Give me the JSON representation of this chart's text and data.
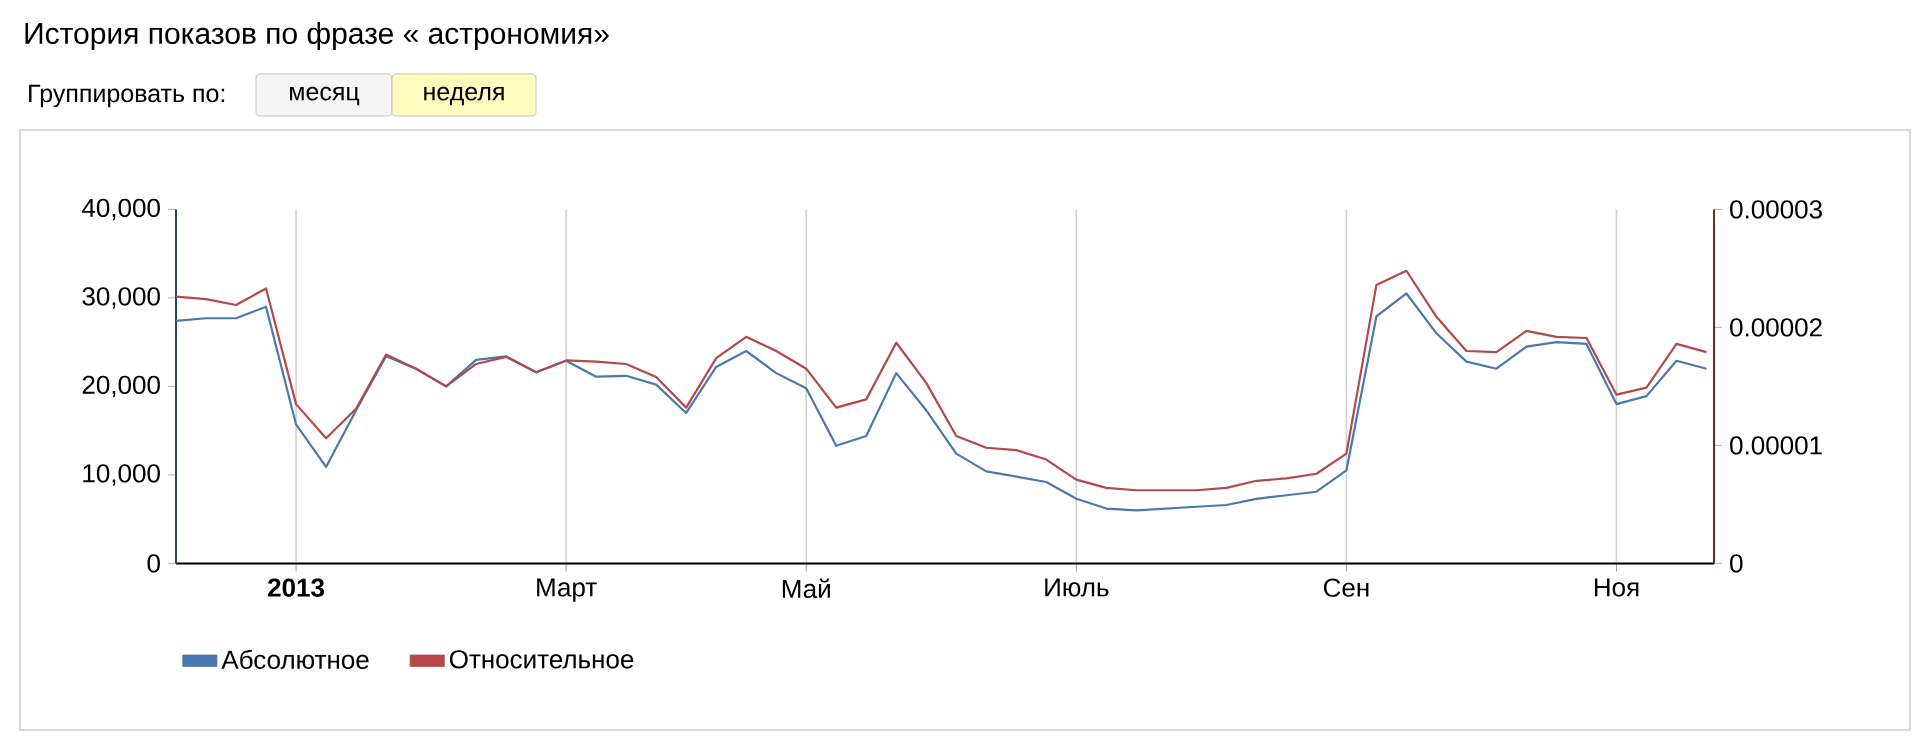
{
  "chart_data": {
    "type": "line",
    "title": "История показов по фразе « астрономия»",
    "annotations": [
      "Группировать по:",
      "месяц",
      "неделя"
    ],
    "categories": [
      null,
      null,
      null,
      null,
      "2013",
      null,
      null,
      null,
      null,
      null,
      null,
      null,
      null,
      "Март",
      null,
      null,
      null,
      null,
      null,
      null,
      null,
      "Май",
      null,
      null,
      null,
      null,
      null,
      null,
      null,
      null,
      "Июль",
      null,
      null,
      null,
      null,
      null,
      null,
      null,
      null,
      "Сен",
      null,
      null,
      null,
      null,
      null,
      null,
      null,
      null,
      "Ноя",
      null,
      null,
      null
    ],
    "series": [
      {
        "name": "Абсолютное",
        "color": "#4a78b0",
        "values": [
          27400,
          27700,
          27700,
          29000,
          15700,
          10900,
          17300,
          23400,
          22000,
          20000,
          23000,
          23400,
          21600,
          22900,
          21100,
          21200,
          20200,
          17000,
          22200,
          24000,
          21500,
          19800,
          13300,
          14400,
          21500,
          17300,
          12400,
          10400,
          9800,
          9200,
          7300,
          6200,
          6000,
          6200,
          6400,
          6600,
          7300,
          7700,
          8100,
          10500,
          27900,
          30500,
          26000,
          22800,
          22000,
          24500,
          25000,
          24800,
          18000,
          18900,
          22900,
          22000
        ]
      },
      {
        "name": "Относительное",
        "color": "#b5484a",
        "axis": "y2",
        "values": [
          2.26e-05,
          2.24e-05,
          2.19e-05,
          2.33e-05,
          1.35e-05,
          1.06e-05,
          1.31e-05,
          1.77e-05,
          1.65e-05,
          1.5e-05,
          1.69e-05,
          1.75e-05,
          1.62e-05,
          1.72e-05,
          1.71e-05,
          1.69e-05,
          1.58e-05,
          1.32e-05,
          1.74e-05,
          1.92e-05,
          1.8e-05,
          1.65e-05,
          1.32e-05,
          1.39e-05,
          1.87e-05,
          1.53e-05,
          1.08e-05,
          9.8e-06,
          9.6e-06,
          8.8e-06,
          7.1e-06,
          6.4e-06,
          6.2e-06,
          6.2e-06,
          6.2e-06,
          6.4e-06,
          7e-06,
          7.2e-06,
          7.6e-06,
          9.3e-06,
          2.36e-05,
          2.48e-05,
          2.09e-05,
          1.8e-05,
          1.79e-05,
          1.97e-05,
          1.92e-05,
          1.91e-05,
          1.43e-05,
          1.49e-05,
          1.86e-05,
          1.79e-05
        ]
      }
    ],
    "ylim": [
      0,
      40000
    ],
    "yticks": [
      0,
      {
        "value": 10000,
        "label": "10,000"
      },
      {
        "value": 20000,
        "label": "20,000"
      },
      {
        "value": 30000,
        "label": "30,000"
      },
      {
        "value": 40000,
        "label": "40,000"
      }
    ],
    "y2lim": [
      0,
      3e-05
    ],
    "y2ticks": [
      0,
      {
        "value": 1e-05,
        "label": "0.00001"
      },
      {
        "value": 2e-05,
        "label": "0.00002"
      },
      {
        "value": 3e-05,
        "label": "0.00003"
      }
    ],
    "grid": "x",
    "legend": "bottom left",
    "marker": "none",
    "line_style": "solid"
  }
}
